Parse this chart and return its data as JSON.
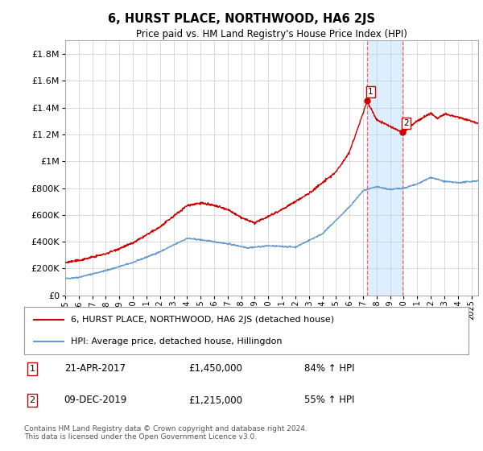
{
  "title": "6, HURST PLACE, NORTHWOOD, HA6 2JS",
  "subtitle": "Price paid vs. HM Land Registry's House Price Index (HPI)",
  "footer": "Contains HM Land Registry data © Crown copyright and database right 2024.\nThis data is licensed under the Open Government Licence v3.0.",
  "legend_line1": "6, HURST PLACE, NORTHWOOD, HA6 2JS (detached house)",
  "legend_line2": "HPI: Average price, detached house, Hillingdon",
  "sale1_label": "1",
  "sale1_date": "21-APR-2017",
  "sale1_price": "£1,450,000",
  "sale1_hpi": "84% ↑ HPI",
  "sale2_label": "2",
  "sale2_date": "09-DEC-2019",
  "sale2_price": "£1,215,000",
  "sale2_hpi": "55% ↑ HPI",
  "sale1_year": 2017.3,
  "sale1_value": 1450000,
  "sale2_year": 2019.93,
  "sale2_value": 1215000,
  "highlight_x1": 2017.3,
  "highlight_x2": 2019.93,
  "red_color": "#cc0000",
  "blue_color": "#6699cc",
  "highlight_color": "#ddeeff",
  "dashed_color": "#ff6666",
  "ylim_min": 0,
  "ylim_max": 1900000,
  "xlim_min": 1995,
  "xlim_max": 2025.5,
  "xtick_years": [
    1995,
    1996,
    1997,
    1998,
    1999,
    2000,
    2001,
    2002,
    2003,
    2004,
    2005,
    2006,
    2007,
    2008,
    2009,
    2010,
    2011,
    2012,
    2013,
    2014,
    2015,
    2016,
    2017,
    2018,
    2019,
    2020,
    2021,
    2022,
    2023,
    2024,
    2025
  ],
  "xtick_labels": [
    "1995",
    "1996",
    "1997",
    "1998",
    "1999",
    "2000",
    "2001",
    "2002",
    "2003",
    "2004",
    "2005",
    "2006",
    "2007",
    "2008",
    "2009",
    "2010",
    "2011",
    "2012",
    "2013",
    "2014",
    "2015",
    "2016",
    "2017",
    "2018",
    "2019",
    "2020",
    "2021",
    "2022",
    "2023",
    "2024",
    "2025"
  ]
}
